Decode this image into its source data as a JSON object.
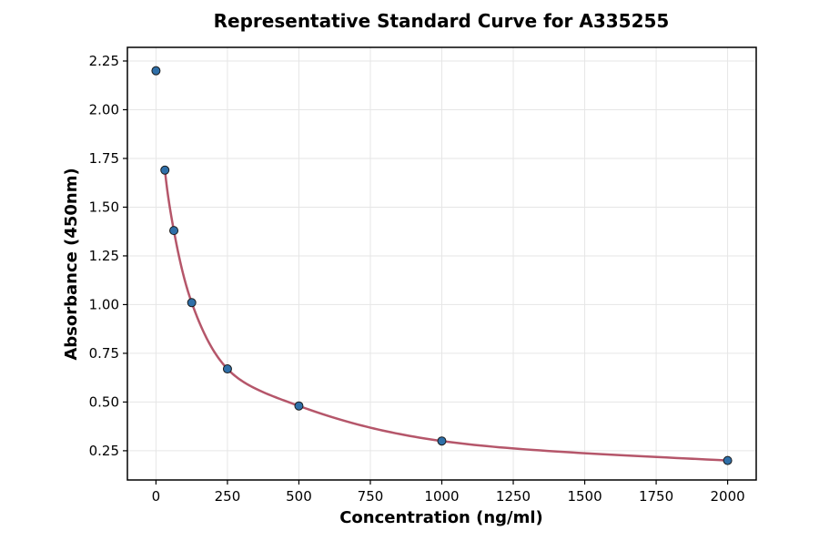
{
  "chart_data": {
    "type": "scatter",
    "title": "Representative Standard Curve for A335255",
    "xlabel": "Concentration (ng/ml)",
    "ylabel": "Absorbance (450nm)",
    "xlim": [
      -100,
      2100
    ],
    "ylim": [
      0.1,
      2.32
    ],
    "x_ticks": [
      0,
      250,
      500,
      750,
      1000,
      1250,
      1500,
      1750,
      2000
    ],
    "y_ticks": [
      0.25,
      0.5,
      0.75,
      1.0,
      1.25,
      1.5,
      1.75,
      2.0,
      2.25
    ],
    "grid": true,
    "series": [
      {
        "type": "scatter",
        "x": [
          0,
          31.25,
          62.5,
          125,
          250,
          500,
          1000,
          2000
        ],
        "y": [
          2.2,
          1.69,
          1.38,
          1.01,
          0.67,
          0.48,
          0.3,
          0.2
        ]
      }
    ],
    "colors": {
      "points": "#2f6fa8",
      "curve": "#b5566a"
    }
  }
}
